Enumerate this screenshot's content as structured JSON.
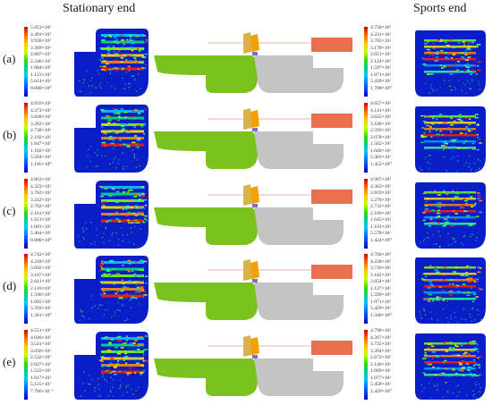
{
  "header": {
    "left_title": "Stationary end",
    "right_title": "Sports end"
  },
  "rows": [
    {
      "label": "(a)",
      "left_legend": [
        "5.053×10²",
        "4.491×10²",
        "3.930×10²",
        "3.369×10²",
        "2.807×10²",
        "2.246×10²",
        "1.684×10²",
        "1.123×10²",
        "5.614×10¹",
        "0.000×10⁰"
      ],
      "right_legend": [
        "4.758×10²",
        "4.231×10²",
        "3.705×10²",
        "3.178×10²",
        "2.651×10²",
        "2.124×10²",
        "1.597×10²",
        "1.071×10²",
        "5.439×10¹",
        "1.708×10⁰"
      ]
    },
    {
      "label": "(b)",
      "left_legend": [
        "4.919×10²",
        "4.373×10²",
        "3.828×10²",
        "3.283×10²",
        "2.738×10²",
        "2.192×10²",
        "1.647×10²",
        "1.102×10²",
        "5.564×10¹",
        "1.105×10⁰"
      ],
      "right_legend": [
        "4.657×10²",
        "4.141×10²",
        "3.625×10²",
        "3.109×10²",
        "2.593×10²",
        "2.078×10²",
        "1.562×10²",
        "1.046×10²",
        "5.303×10¹",
        "1.452×10⁰"
      ]
    },
    {
      "label": "(c)",
      "left_legend": [
        "4.863×10²",
        "4.323×10²",
        "3.783×10²",
        "3.242×10²",
        "2.702×10²",
        "2.161×10²",
        "1.621×10²",
        "1.081×10²",
        "5.404×10¹",
        "0.000×10⁰"
      ],
      "right_legend": [
        "4.907×10²",
        "4.363×10²",
        "3.819×10²",
        "3.276×10²",
        "2.732×10²",
        "2.189×10²",
        "1.645×10²",
        "1.101×10²",
        "5.578×10¹",
        "1.424×10⁰"
      ]
    },
    {
      "label": "(d)",
      "left_legend": [
        "4.743×10²",
        "4.218×10²",
        "3.692×10²",
        "3.167×10²",
        "2.641×10²",
        "2.116×10²",
        "1.590×10²",
        "1.065×10²",
        "5.393×10¹",
        "1.381×10⁰"
      ],
      "right_legend": [
        "4.766×10²",
        "4.238×10²",
        "3.710×10²",
        "3.182×10²",
        "2.654×10²",
        "2.127×10²",
        "1.599×10²",
        "1.071×10²",
        "5.429×10¹",
        "1.506×10⁰"
      ]
    },
    {
      "label": "(e)",
      "left_legend": [
        "4.551×10²",
        "4.046×10²",
        "3.541×10²",
        "3.036×10²",
        "2.532×10²",
        "2.027×10²",
        "1.522×10²",
        "1.017×10²",
        "5.125×10¹",
        "7.786×10⁻¹"
      ],
      "right_legend": [
        "4.798×10²",
        "4.267×10²",
        "3.735×10²",
        "3.204×10²",
        "2.672×10²",
        "2.140×10²",
        "1.609×10²",
        "1.077×10²",
        "5.458×10¹",
        "1.429×10⁰"
      ]
    }
  ],
  "colors": {
    "fea_blue": "#0a1ec8",
    "rail_green": "#7cc21e",
    "rail_gray": "#c4c4c4",
    "block_orange": "#e8704e",
    "tan_part": "#d8b24a",
    "orange_part": "#f2a000",
    "purple_part": "#8070c0"
  },
  "icons": {
    "fea_left": "stress-contour-stationary-end",
    "fea_right": "stress-contour-sports-end",
    "assembly": "rail-assembly-model"
  }
}
